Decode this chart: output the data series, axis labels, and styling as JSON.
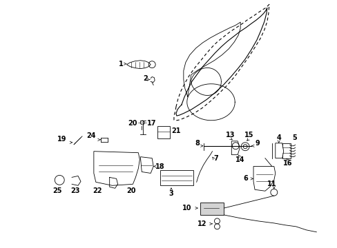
{
  "bg_color": "#ffffff",
  "fg_color": "#000000",
  "fig_width": 4.89,
  "fig_height": 3.6,
  "dpi": 100
}
